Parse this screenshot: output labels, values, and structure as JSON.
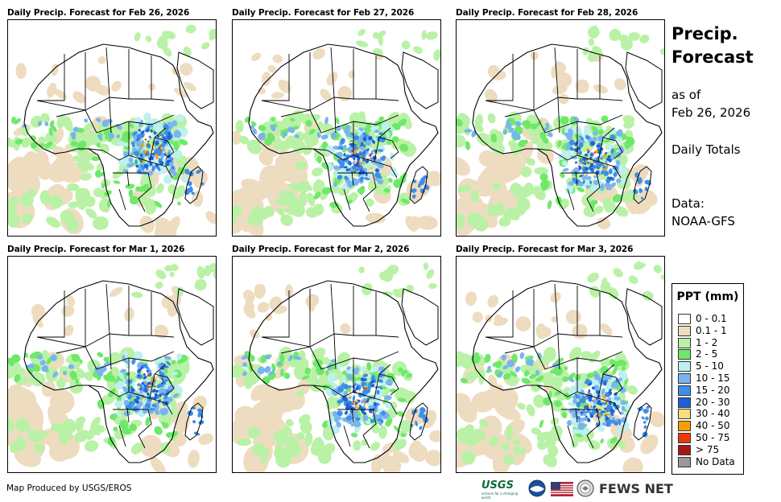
{
  "panels": [
    {
      "title": "Daily Precip. Forecast for Feb 26, 2026",
      "scene": 0
    },
    {
      "title": "Daily Precip. Forecast for Feb 27, 2026",
      "scene": 1
    },
    {
      "title": "Daily Precip. Forecast for Feb 28, 2026",
      "scene": 2
    },
    {
      "title": "Daily Precip. Forecast for Mar 1, 2026",
      "scene": 3
    },
    {
      "title": "Daily Precip. Forecast for Mar 2, 2026",
      "scene": 4
    },
    {
      "title": "Daily Precip. Forecast for Mar 3, 2026",
      "scene": 5
    }
  ],
  "sidebar": {
    "title_line1": "Precip.",
    "title_line2": "Forecast",
    "as_of_label": "as of",
    "as_of_date": "Feb 26, 2026",
    "totals_label": "Daily Totals",
    "data_label": "Data:",
    "data_source": "NOAA-GFS"
  },
  "legend": {
    "title": "PPT (mm)",
    "items": [
      {
        "label": "0 - 0.1",
        "color": "#ffffff"
      },
      {
        "label": "0.1 - 1",
        "color": "#eedcc0"
      },
      {
        "label": "1 - 2",
        "color": "#b9f2a6"
      },
      {
        "label": "2 - 5",
        "color": "#6fe86a"
      },
      {
        "label": "5 - 10",
        "color": "#bdf0ef"
      },
      {
        "label": "10 - 15",
        "color": "#7ab4f0"
      },
      {
        "label": "15 - 20",
        "color": "#3d8ee8"
      },
      {
        "label": "20 - 30",
        "color": "#1f5fd6"
      },
      {
        "label": "30 - 40",
        "color": "#f9df7b"
      },
      {
        "label": "40 - 50",
        "color": "#f5a000"
      },
      {
        "label": "50 - 75",
        "color": "#ec3a00"
      },
      {
        "label": "> 75",
        "color": "#a81818"
      },
      {
        "label": "No Data",
        "color": "#999999"
      }
    ]
  },
  "footer": {
    "credit": "Map Produced by USGS/EROS",
    "usgs_label": "USGS",
    "usgs_tagline": "science for a changing world",
    "fews_label": "FEWS NET"
  }
}
